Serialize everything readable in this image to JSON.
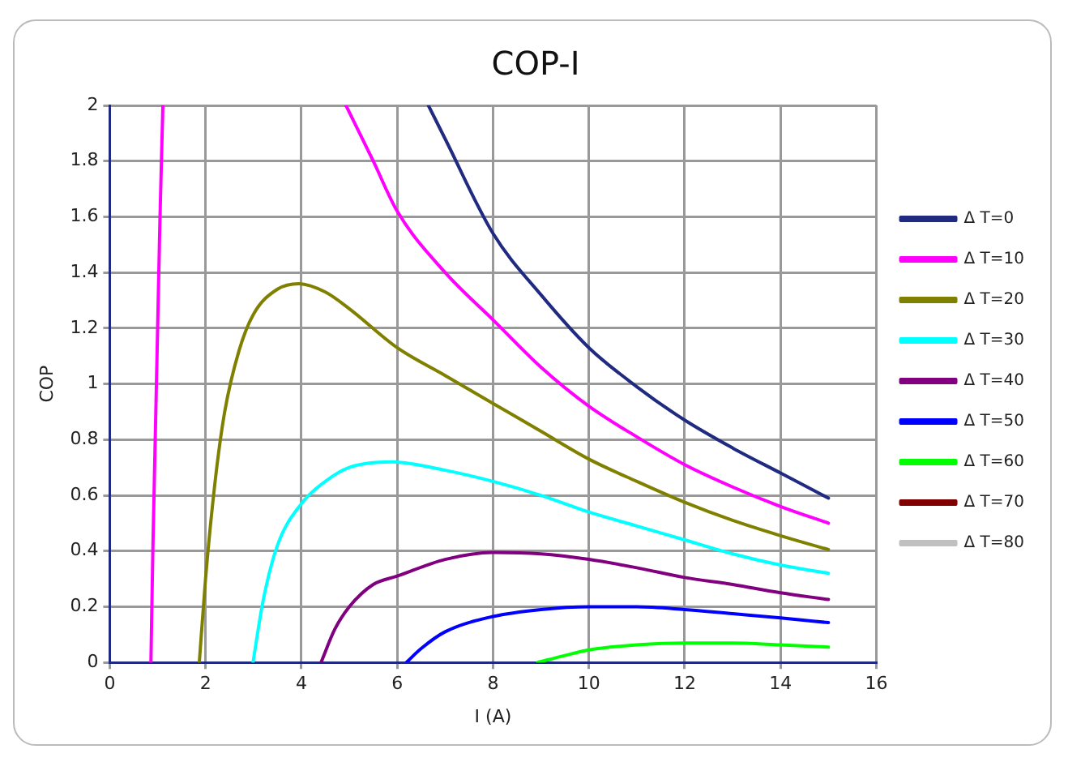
{
  "chart_data": {
    "type": "line",
    "title": "COP-I",
    "xlabel": "I (A)",
    "ylabel": "COP",
    "xlim": [
      0,
      16
    ],
    "xticks": [
      0,
      2,
      4,
      6,
      8,
      10,
      12,
      14,
      16
    ],
    "ylim": [
      0,
      2
    ],
    "yticks": [
      0,
      0.2,
      0.4,
      0.6,
      0.8,
      1,
      1.2,
      1.4,
      1.6,
      1.8,
      2
    ],
    "grid": true,
    "legend": "right",
    "marker": "none",
    "line_style": "solid",
    "series": [
      {
        "name": "Δ T=0",
        "color": "#1f2a80",
        "x": [
          6.65,
          7,
          8,
          9,
          10,
          11,
          12,
          13,
          14,
          15
        ],
        "values": [
          2,
          1.88,
          1.54,
          1.32,
          1.13,
          0.99,
          0.87,
          0.77,
          0.68,
          0.59
        ]
      },
      {
        "name": "Δ T=10",
        "color": "#ff00ff",
        "x": [
          0.86,
          0.9,
          0.95,
          1.0,
          1.05,
          1.11,
          3,
          4.93,
          5.5,
          6,
          7,
          8,
          9,
          10,
          11,
          12,
          13,
          14,
          15
        ],
        "values": [
          0,
          0.4,
          0.8,
          1.2,
          1.6,
          2,
          null,
          2,
          1.8,
          1.62,
          1.4,
          1.23,
          1.06,
          0.92,
          0.81,
          0.71,
          0.63,
          0.56,
          0.5
        ]
      },
      {
        "name": "Δ T=20",
        "color": "#808000",
        "x": [
          1.87,
          2.0,
          2.2,
          2.4,
          2.7,
          3.0,
          3.5,
          3.95,
          4.5,
          5,
          6,
          7,
          8,
          9,
          10,
          11,
          12,
          13,
          14,
          15
        ],
        "values": [
          0,
          0.3,
          0.65,
          0.9,
          1.12,
          1.25,
          1.34,
          1.36,
          1.33,
          1.27,
          1.13,
          1.03,
          0.93,
          0.83,
          0.73,
          0.65,
          0.575,
          0.51,
          0.455,
          0.405
        ]
      },
      {
        "name": "Δ T=30",
        "color": "#00ffff",
        "x": [
          2.99,
          3.2,
          3.5,
          4,
          4.5,
          5,
          5.88,
          7,
          8,
          9,
          10,
          11,
          12,
          13,
          14,
          15
        ],
        "values": [
          0,
          0.22,
          0.42,
          0.57,
          0.65,
          0.7,
          0.72,
          0.69,
          0.65,
          0.6,
          0.54,
          0.49,
          0.44,
          0.39,
          0.35,
          0.32
        ]
      },
      {
        "name": "Δ T=40",
        "color": "#800080",
        "x": [
          4.41,
          4.7,
          5,
          5.5,
          6,
          7,
          8,
          9,
          10,
          11,
          12,
          13,
          14,
          15
        ],
        "values": [
          0,
          0.12,
          0.2,
          0.28,
          0.31,
          0.37,
          0.395,
          0.39,
          0.37,
          0.34,
          0.305,
          0.28,
          0.25,
          0.226
        ]
      },
      {
        "name": "Δ T=50",
        "color": "#0000ff",
        "x": [
          6.19,
          6.5,
          7,
          8,
          9,
          10,
          11,
          12,
          13,
          14,
          15
        ],
        "values": [
          0,
          0.05,
          0.11,
          0.165,
          0.19,
          0.2,
          0.2,
          0.19,
          0.175,
          0.16,
          0.143
        ]
      },
      {
        "name": "Δ T=60",
        "color": "#00ff00",
        "x": [
          8.93,
          9.5,
          10,
          11,
          12,
          13,
          14,
          15
        ],
        "values": [
          0,
          0.025,
          0.045,
          0.063,
          0.07,
          0.07,
          0.063,
          0.055
        ]
      },
      {
        "name": "Δ T=70",
        "color": "#800000"
      },
      {
        "name": "Δ T=80",
        "color": "#c0c0c0"
      }
    ]
  }
}
